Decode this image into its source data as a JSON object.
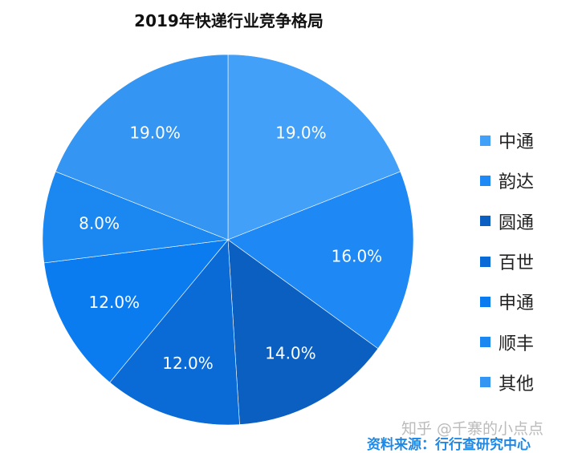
{
  "chart_data": {
    "type": "pie",
    "title": "2019年快递行业竞争格局",
    "start": "top",
    "direction": "clockwise",
    "legend_position": "right",
    "slices": [
      {
        "label": "中通",
        "value": 19.0,
        "display": "19.0%",
        "color": "#42a0f8"
      },
      {
        "label": "韵达",
        "value": 16.0,
        "display": "16.0%",
        "color": "#1e88f5"
      },
      {
        "label": "圆通",
        "value": 14.0,
        "display": "14.0%",
        "color": "#0b5fc0"
      },
      {
        "label": "百世",
        "value": 12.0,
        "display": "12.0%",
        "color": "#0a6ad6"
      },
      {
        "label": "申通",
        "value": 12.0,
        "display": "12.0%",
        "color": "#0b7cf0"
      },
      {
        "label": "顺丰",
        "value": 8.0,
        "display": "8.0%",
        "color": "#1b87f0"
      },
      {
        "label": "其他",
        "value": 19.0,
        "display": "19.0%",
        "color": "#3495f3"
      }
    ]
  },
  "watermark": "知乎 @千寨的小点点",
  "source": "资料来源：行行查研究中心"
}
